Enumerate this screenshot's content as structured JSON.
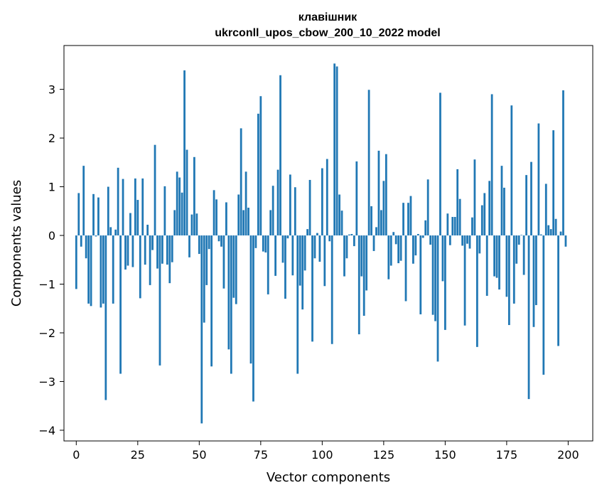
{
  "chart_data": {
    "type": "bar",
    "title_line1": "клавішник",
    "title_line2": "ukrconll_upos_cbow_200_10_2022 model",
    "xlabel": "Vector components",
    "ylabel": "Components values",
    "xlim": [
      -5,
      210
    ],
    "ylim": [
      -4.22,
      3.9
    ],
    "xticks": [
      0,
      25,
      50,
      75,
      100,
      125,
      150,
      175,
      200
    ],
    "yticks": [
      -4,
      -3,
      -2,
      -1,
      0,
      1,
      2,
      3
    ],
    "xtick_labels": [
      "0",
      "25",
      "50",
      "75",
      "100",
      "125",
      "150",
      "175",
      "200"
    ],
    "ytick_labels": [
      "−4",
      "−3",
      "−2",
      "−1",
      "0",
      "1",
      "2",
      "3"
    ],
    "grid": false,
    "bar_color": "#1f77b4",
    "values": [
      -1.1,
      0.87,
      -0.23,
      1.43,
      -0.47,
      -1.4,
      -1.45,
      0.85,
      -0.02,
      0.78,
      -1.48,
      -1.4,
      -3.38,
      1.0,
      0.17,
      -1.4,
      0.12,
      1.39,
      -2.84,
      1.16,
      -0.7,
      -0.62,
      0.46,
      -0.65,
      1.17,
      0.73,
      -1.29,
      1.17,
      -0.6,
      0.22,
      -1.02,
      -0.3,
      1.86,
      -0.68,
      -2.67,
      -0.58,
      1.01,
      -0.6,
      -0.98,
      -0.55,
      0.52,
      1.31,
      1.19,
      0.88,
      3.39,
      1.76,
      -0.45,
      0.43,
      1.61,
      0.45,
      -0.38,
      -3.86,
      -1.79,
      -1.02,
      -0.28,
      -2.69,
      0.93,
      0.74,
      -0.12,
      -0.23,
      -1.09,
      0.68,
      -2.34,
      -2.84,
      -1.28,
      -1.41,
      0.84,
      2.2,
      0.52,
      1.31,
      0.57,
      -2.63,
      -3.41,
      -0.26,
      2.5,
      2.86,
      -0.33,
      -0.35,
      -1.21,
      0.52,
      1.02,
      -0.83,
      1.35,
      3.29,
      -0.56,
      -1.3,
      -0.06,
      1.25,
      -0.82,
      0.99,
      -2.84,
      -1.03,
      -1.52,
      -0.72,
      0.13,
      1.14,
      -2.18,
      -0.47,
      0.05,
      -0.54,
      1.38,
      -1.04,
      1.57,
      -0.12,
      -2.23,
      3.53,
      3.47,
      0.84,
      0.51,
      -0.84,
      -0.47,
      0.02,
      0.03,
      -0.22,
      1.52,
      -2.03,
      -0.84,
      -1.65,
      -1.13,
      2.99,
      0.6,
      -0.32,
      0.17,
      1.74,
      0.52,
      1.12,
      1.67,
      -0.9,
      -0.62,
      0.07,
      -0.18,
      -0.57,
      -0.52,
      0.67,
      -1.35,
      0.67,
      0.81,
      -0.58,
      -0.41,
      0.03,
      -1.62,
      -0.05,
      0.31,
      1.15,
      -0.19,
      -1.63,
      -1.76,
      -2.59,
      2.93,
      -0.94,
      -1.94,
      0.45,
      -0.2,
      0.38,
      0.38,
      1.36,
      0.75,
      -0.21,
      -1.85,
      -0.17,
      -0.27,
      0.37,
      1.56,
      -2.29,
      -0.37,
      0.62,
      0.87,
      -1.24,
      1.12,
      2.9,
      -0.84,
      -0.87,
      -1.11,
      1.43,
      0.98,
      -1.26,
      -1.84,
      2.67,
      -1.4,
      -0.58,
      -0.19,
      0.01,
      -0.81,
      1.24,
      -3.36,
      1.51,
      -1.88,
      -1.43,
      2.3,
      0.02,
      -2.86,
      1.06,
      0.21,
      0.13,
      2.16,
      0.34,
      -2.27,
      0.08,
      2.98,
      -0.23
    ]
  }
}
